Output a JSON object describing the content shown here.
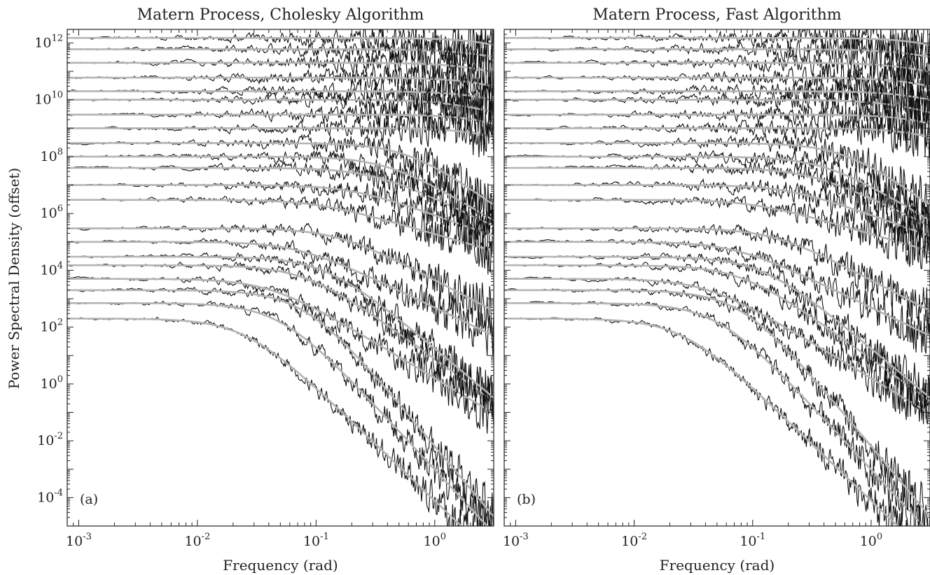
{
  "figure": {
    "ylabel": "Power Spectral Density (offset)"
  },
  "chart_data": [
    {
      "type": "line",
      "title": "Matern Process, Cholesky Algorithm",
      "panel_label": "(a)",
      "xlabel": "Frequency (rad)",
      "ylabel": "Power Spectral Density (offset)",
      "x_scale": "log",
      "y_scale": "log",
      "xlim": [
        0.0008,
        3.14
      ],
      "ylim": [
        1e-05,
        3000000000000.0
      ],
      "x_ticks": [
        {
          "value": 0.001,
          "base": "10",
          "exp": "-3"
        },
        {
          "value": 0.01,
          "base": "10",
          "exp": "-2"
        },
        {
          "value": 0.1,
          "base": "10",
          "exp": "-1"
        },
        {
          "value": 1,
          "base": "10",
          "exp": "0"
        }
      ],
      "y_ticks": [
        {
          "value": 0.0001,
          "base": "10",
          "exp": "-4"
        },
        {
          "value": 0.01,
          "base": "10",
          "exp": "-2"
        },
        {
          "value": 1,
          "base": "10",
          "exp": "0"
        },
        {
          "value": 100,
          "base": "10",
          "exp": "2"
        },
        {
          "value": 10000,
          "base": "10",
          "exp": "4"
        },
        {
          "value": 1000000,
          "base": "10",
          "exp": "6"
        },
        {
          "value": 100000000,
          "base": "10",
          "exp": "8"
        },
        {
          "value": 10000000000,
          "base": "10",
          "exp": "10"
        },
        {
          "value": 1000000000000,
          "base": "10",
          "exp": "12"
        }
      ],
      "series_style": {
        "estimate_color": "#111111",
        "theory_color": "#b4b4b4"
      },
      "series": [
        {
          "plateau": 200,
          "corner": 0.025,
          "slope": 4.0
        },
        {
          "plateau": 700,
          "corner": 0.05,
          "slope": 4.5
        },
        {
          "plateau": 2000,
          "corner": 0.08,
          "slope": 5.0
        },
        {
          "plateau": 5000,
          "corner": 0.04,
          "slope": 2.5
        },
        {
          "plateau": 15000,
          "corner": 0.08,
          "slope": 3.0
        },
        {
          "plateau": 30000,
          "corner": 0.12,
          "slope": 3.5
        },
        {
          "plateau": 100000,
          "corner": 0.07,
          "slope": 2.0
        },
        {
          "plateau": 300000,
          "corner": 0.15,
          "slope": 2.2
        },
        {
          "plateau": 3000000,
          "corner": 0.1,
          "slope": 1.2
        },
        {
          "plateau": 10000000,
          "corner": 0.2,
          "slope": 1.5
        },
        {
          "plateau": 40000000,
          "corner": 0.3,
          "slope": 2.0
        },
        {
          "plateau": 100000000,
          "corner": 0.4,
          "slope": 2.5
        },
        {
          "plateau": 300000000,
          "corner": 0.6,
          "slope": 3.0
        },
        {
          "plateau": 1000000000,
          "corner": 3.0,
          "slope": 2.0
        },
        {
          "plateau": 3000000000,
          "corner": 3.0,
          "slope": 2.0
        },
        {
          "plateau": 10000000000,
          "corner": 1.5,
          "slope": 1.2
        },
        {
          "plateau": 20000000000,
          "corner": 2.5,
          "slope": 1.5
        },
        {
          "plateau": 60000000000,
          "corner": 2.5,
          "slope": 1.5
        },
        {
          "plateau": 200000000000,
          "corner": 2.0,
          "slope": 1.2
        },
        {
          "plateau": 600000000000,
          "corner": 2.0,
          "slope": 1.0
        },
        {
          "plateau": 1500000000000,
          "corner": 3.0,
          "slope": 1.5
        }
      ]
    },
    {
      "type": "line",
      "title": "Matern Process, Fast Algorithm",
      "panel_label": "(b)",
      "xlabel": "Frequency (rad)",
      "x_scale": "log",
      "y_scale": "log",
      "xlim": [
        0.0008,
        3.14
      ],
      "ylim": [
        1e-05,
        3000000000000.0
      ],
      "x_ticks": [
        {
          "value": 0.001,
          "base": "10",
          "exp": "-3"
        },
        {
          "value": 0.01,
          "base": "10",
          "exp": "-2"
        },
        {
          "value": 0.1,
          "base": "10",
          "exp": "-1"
        },
        {
          "value": 1,
          "base": "10",
          "exp": "0"
        }
      ],
      "series_style": {
        "estimate_color": "#111111",
        "theory_color": "#b4b4b4"
      },
      "series": [
        {
          "plateau": 200,
          "corner": 0.025,
          "slope": 4.0
        },
        {
          "plateau": 700,
          "corner": 0.05,
          "slope": 4.5
        },
        {
          "plateau": 2000,
          "corner": 0.08,
          "slope": 5.0
        },
        {
          "plateau": 5000,
          "corner": 0.04,
          "slope": 2.5
        },
        {
          "plateau": 15000,
          "corner": 0.08,
          "slope": 3.0
        },
        {
          "plateau": 30000,
          "corner": 0.12,
          "slope": 3.5
        },
        {
          "plateau": 100000,
          "corner": 0.07,
          "slope": 2.0
        },
        {
          "plateau": 300000,
          "corner": 0.15,
          "slope": 2.2
        },
        {
          "plateau": 3000000,
          "corner": 0.1,
          "slope": 1.2
        },
        {
          "plateau": 10000000,
          "corner": 0.2,
          "slope": 1.5
        },
        {
          "plateau": 40000000,
          "corner": 0.3,
          "slope": 2.0
        },
        {
          "plateau": 100000000,
          "corner": 0.4,
          "slope": 2.5
        },
        {
          "plateau": 300000000,
          "corner": 0.6,
          "slope": 3.0
        },
        {
          "plateau": 1000000000,
          "corner": 3.0,
          "slope": 2.0
        },
        {
          "plateau": 3000000000,
          "corner": 3.0,
          "slope": 2.0
        },
        {
          "plateau": 10000000000,
          "corner": 1.5,
          "slope": 1.2
        },
        {
          "plateau": 20000000000,
          "corner": 2.5,
          "slope": 1.5
        },
        {
          "plateau": 60000000000,
          "corner": 2.5,
          "slope": 1.5
        },
        {
          "plateau": 200000000000,
          "corner": 2.0,
          "slope": 1.2
        },
        {
          "plateau": 600000000000,
          "corner": 2.0,
          "slope": 1.0
        },
        {
          "plateau": 1500000000000,
          "corner": 3.0,
          "slope": 1.5
        }
      ]
    }
  ]
}
